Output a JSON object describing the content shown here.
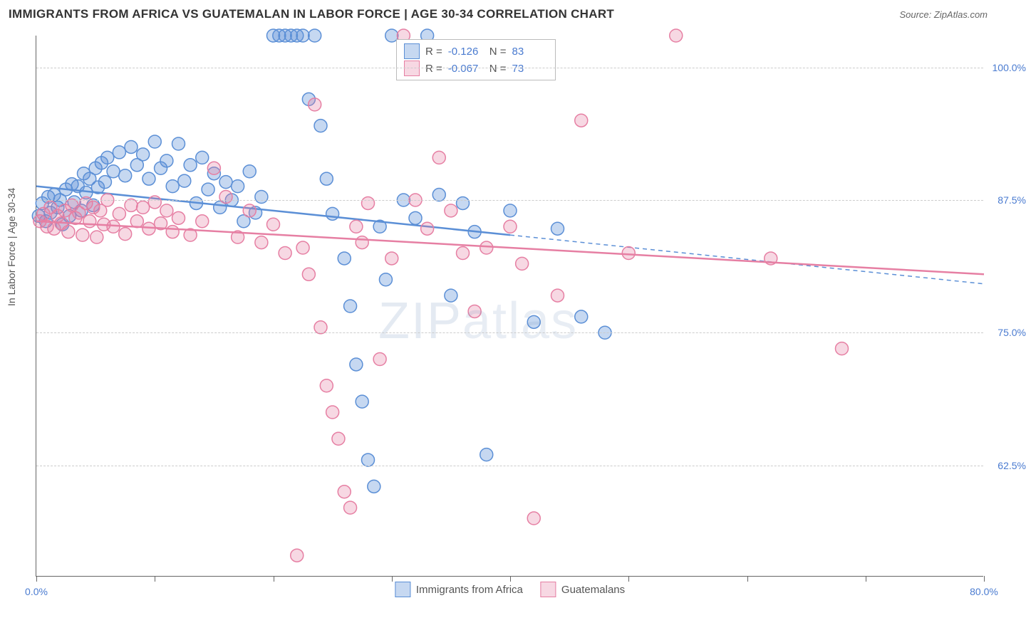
{
  "title": "IMMIGRANTS FROM AFRICA VS GUATEMALAN IN LABOR FORCE | AGE 30-34 CORRELATION CHART",
  "source": "Source: ZipAtlas.com",
  "ylabel": "In Labor Force | Age 30-34",
  "watermark_a": "ZIP",
  "watermark_b": "atlas",
  "chart": {
    "type": "scatter",
    "background_color": "#ffffff",
    "grid_color": "#cccccc",
    "axis_color": "#666666",
    "tick_label_color": "#4a7bd0",
    "xlim": [
      0,
      80
    ],
    "ylim": [
      52,
      103
    ],
    "yticks": [
      62.5,
      75.0,
      87.5,
      100.0
    ],
    "ytick_labels": [
      "62.5%",
      "75.0%",
      "87.5%",
      "100.0%"
    ],
    "xticks": [
      0,
      10,
      20,
      30,
      40,
      50,
      60,
      70,
      80
    ],
    "xtick_labels_shown": {
      "0": "0.0%",
      "80": "80.0%"
    },
    "marker_radius": 9,
    "marker_fill_opacity": 0.35,
    "marker_stroke_width": 1.5,
    "line_width": 2.5,
    "series": [
      {
        "name": "Immigrants from Africa",
        "color": "#5b8fd6",
        "fill": "rgba(91,143,214,0.35)",
        "R": "-0.126",
        "N": "83",
        "trend": {
          "x1": 0,
          "y1": 88.8,
          "x2": 40,
          "y2": 84.2,
          "dash_x2": 80,
          "dash_y2": 79.6
        },
        "points": [
          [
            0.2,
            86.0
          ],
          [
            0.5,
            87.2
          ],
          [
            0.8,
            85.5
          ],
          [
            1.0,
            87.8
          ],
          [
            1.2,
            86.3
          ],
          [
            1.5,
            88.0
          ],
          [
            1.8,
            86.8
          ],
          [
            2.0,
            87.5
          ],
          [
            2.2,
            85.2
          ],
          [
            2.5,
            88.5
          ],
          [
            2.8,
            86.0
          ],
          [
            3.0,
            89.0
          ],
          [
            3.2,
            87.3
          ],
          [
            3.5,
            88.8
          ],
          [
            3.8,
            86.5
          ],
          [
            4.0,
            90.0
          ],
          [
            4.2,
            88.2
          ],
          [
            4.5,
            89.5
          ],
          [
            4.8,
            87.0
          ],
          [
            5.0,
            90.5
          ],
          [
            5.2,
            88.7
          ],
          [
            5.5,
            91.0
          ],
          [
            5.8,
            89.2
          ],
          [
            6.0,
            91.5
          ],
          [
            6.5,
            90.2
          ],
          [
            7.0,
            92.0
          ],
          [
            7.5,
            89.8
          ],
          [
            8.0,
            92.5
          ],
          [
            8.5,
            90.8
          ],
          [
            9.0,
            91.8
          ],
          [
            9.5,
            89.5
          ],
          [
            10.0,
            93.0
          ],
          [
            10.5,
            90.5
          ],
          [
            11.0,
            91.2
          ],
          [
            11.5,
            88.8
          ],
          [
            12.0,
            92.8
          ],
          [
            12.5,
            89.3
          ],
          [
            13.0,
            90.8
          ],
          [
            13.5,
            87.2
          ],
          [
            14.0,
            91.5
          ],
          [
            14.5,
            88.5
          ],
          [
            15.0,
            90.0
          ],
          [
            15.5,
            86.8
          ],
          [
            16.0,
            89.2
          ],
          [
            16.5,
            87.5
          ],
          [
            17.0,
            88.8
          ],
          [
            17.5,
            85.5
          ],
          [
            18.0,
            90.2
          ],
          [
            18.5,
            86.3
          ],
          [
            19.0,
            87.8
          ],
          [
            20.0,
            103.0
          ],
          [
            20.5,
            103.0
          ],
          [
            21.0,
            103.0
          ],
          [
            21.5,
            103.0
          ],
          [
            22.0,
            103.0
          ],
          [
            22.5,
            103.0
          ],
          [
            23.0,
            97.0
          ],
          [
            23.5,
            103.0
          ],
          [
            24.0,
            94.5
          ],
          [
            24.5,
            89.5
          ],
          [
            25.0,
            86.2
          ],
          [
            26.0,
            82.0
          ],
          [
            26.5,
            77.5
          ],
          [
            27.0,
            72.0
          ],
          [
            27.5,
            68.5
          ],
          [
            28.0,
            63.0
          ],
          [
            28.5,
            60.5
          ],
          [
            29.0,
            85.0
          ],
          [
            29.5,
            80.0
          ],
          [
            30.0,
            103.0
          ],
          [
            31.0,
            87.5
          ],
          [
            32.0,
            85.8
          ],
          [
            33.0,
            103.0
          ],
          [
            34.0,
            88.0
          ],
          [
            35.0,
            78.5
          ],
          [
            36.0,
            87.2
          ],
          [
            37.0,
            84.5
          ],
          [
            38.0,
            63.5
          ],
          [
            40.0,
            86.5
          ],
          [
            42.0,
            76.0
          ],
          [
            44.0,
            84.8
          ],
          [
            46.0,
            76.5
          ],
          [
            48.0,
            75.0
          ]
        ]
      },
      {
        "name": "Guatemalans",
        "color": "#e67fa3",
        "fill": "rgba(230,127,163,0.30)",
        "R": "-0.067",
        "N": "73",
        "trend": {
          "x1": 0,
          "y1": 85.5,
          "x2": 80,
          "y2": 80.5
        },
        "points": [
          [
            0.3,
            85.5
          ],
          [
            0.6,
            86.2
          ],
          [
            0.9,
            85.0
          ],
          [
            1.2,
            86.8
          ],
          [
            1.5,
            84.8
          ],
          [
            1.8,
            86.0
          ],
          [
            2.1,
            85.3
          ],
          [
            2.4,
            86.5
          ],
          [
            2.7,
            84.5
          ],
          [
            3.0,
            87.0
          ],
          [
            3.3,
            85.8
          ],
          [
            3.6,
            86.3
          ],
          [
            3.9,
            84.2
          ],
          [
            4.2,
            87.2
          ],
          [
            4.5,
            85.5
          ],
          [
            4.8,
            86.8
          ],
          [
            5.1,
            84.0
          ],
          [
            5.4,
            86.5
          ],
          [
            5.7,
            85.2
          ],
          [
            6.0,
            87.5
          ],
          [
            6.5,
            85.0
          ],
          [
            7.0,
            86.2
          ],
          [
            7.5,
            84.3
          ],
          [
            8.0,
            87.0
          ],
          [
            8.5,
            85.5
          ],
          [
            9.0,
            86.8
          ],
          [
            9.5,
            84.8
          ],
          [
            10.0,
            87.3
          ],
          [
            10.5,
            85.3
          ],
          [
            11.0,
            86.5
          ],
          [
            11.5,
            84.5
          ],
          [
            12.0,
            85.8
          ],
          [
            13.0,
            84.2
          ],
          [
            14.0,
            85.5
          ],
          [
            15.0,
            90.5
          ],
          [
            16.0,
            87.8
          ],
          [
            17.0,
            84.0
          ],
          [
            18.0,
            86.5
          ],
          [
            19.0,
            83.5
          ],
          [
            20.0,
            85.2
          ],
          [
            21.0,
            82.5
          ],
          [
            22.0,
            54.0
          ],
          [
            22.5,
            83.0
          ],
          [
            23.0,
            80.5
          ],
          [
            23.5,
            96.5
          ],
          [
            24.0,
            75.5
          ],
          [
            24.5,
            70.0
          ],
          [
            25.0,
            67.5
          ],
          [
            25.5,
            65.0
          ],
          [
            26.0,
            60.0
          ],
          [
            26.5,
            58.5
          ],
          [
            27.0,
            85.0
          ],
          [
            27.5,
            83.5
          ],
          [
            28.0,
            87.2
          ],
          [
            29.0,
            72.5
          ],
          [
            30.0,
            82.0
          ],
          [
            31.0,
            103.0
          ],
          [
            32.0,
            87.5
          ],
          [
            33.0,
            84.8
          ],
          [
            34.0,
            91.5
          ],
          [
            35.0,
            86.5
          ],
          [
            36.0,
            82.5
          ],
          [
            37.0,
            77.0
          ],
          [
            38.0,
            83.0
          ],
          [
            40.0,
            85.0
          ],
          [
            41.0,
            81.5
          ],
          [
            42.0,
            57.5
          ],
          [
            44.0,
            78.5
          ],
          [
            46.0,
            95.0
          ],
          [
            50.0,
            82.5
          ],
          [
            54.0,
            103.0
          ],
          [
            62.0,
            82.0
          ],
          [
            68.0,
            73.5
          ]
        ]
      }
    ],
    "legend_bottom": [
      {
        "label": "Immigrants from Africa",
        "color": "#5b8fd6",
        "fill": "rgba(91,143,214,0.35)"
      },
      {
        "label": "Guatemalans",
        "color": "#e67fa3",
        "fill": "rgba(230,127,163,0.30)"
      }
    ]
  }
}
